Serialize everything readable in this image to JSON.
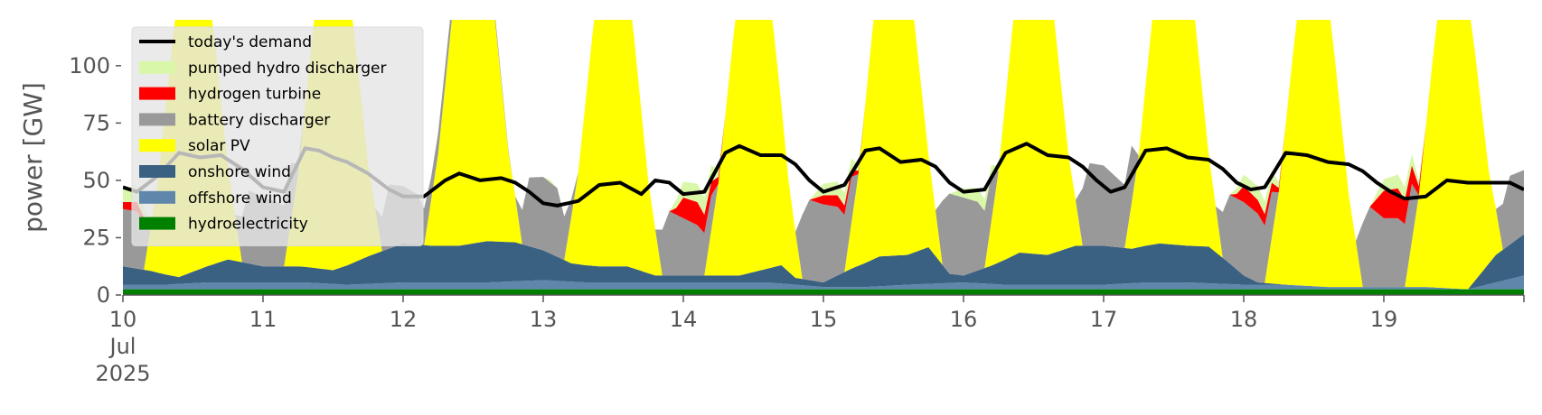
{
  "chart_data": {
    "type": "area",
    "ylabel": "power [GW]",
    "ylim": [
      0,
      120
    ],
    "yticks": [
      0,
      25,
      50,
      75,
      100
    ],
    "xlim": [
      10,
      20
    ],
    "xtick_labels": [
      "10",
      "11",
      "12",
      "13",
      "14",
      "15",
      "16",
      "17",
      "18",
      "19"
    ],
    "xtick_sub": [
      "Jul",
      "2025"
    ],
    "x_unit": "day of July 2025",
    "grid": false,
    "legend_position": "top-left",
    "stack_order": [
      "hydroelectricity",
      "offshore wind",
      "onshore wind",
      "solar PV",
      "battery discharger",
      "hydrogen turbine",
      "pumped hydro discharger"
    ],
    "series": [
      {
        "name": "today's demand",
        "kind": "line",
        "color": "#000000",
        "x": [
          10,
          10.1,
          10.25,
          10.4,
          10.55,
          10.7,
          10.85,
          11,
          11.15,
          11.3,
          11.4,
          11.5,
          11.6,
          11.75,
          11.9,
          12,
          12.15,
          12.3,
          12.4,
          12.55,
          12.7,
          12.8,
          12.9,
          13,
          13.1,
          13.25,
          13.4,
          13.55,
          13.7,
          13.8,
          13.9,
          14,
          14.15,
          14.3,
          14.4,
          14.55,
          14.7,
          14.8,
          14.9,
          15,
          15.15,
          15.3,
          15.4,
          15.55,
          15.7,
          15.8,
          15.9,
          16,
          16.15,
          16.3,
          16.45,
          16.6,
          16.75,
          16.85,
          16.95,
          17.05,
          17.15,
          17.3,
          17.45,
          17.6,
          17.75,
          17.85,
          17.95,
          18.05,
          18.15,
          18.3,
          18.45,
          18.6,
          18.75,
          18.85,
          18.95,
          19.05,
          19.15,
          19.3,
          19.45,
          19.6,
          19.75,
          19.9,
          20
        ],
        "values": [
          47,
          45,
          52,
          62,
          60,
          61,
          55,
          47,
          45,
          64,
          63,
          60,
          58,
          53,
          46,
          43,
          43,
          50,
          53,
          50,
          51,
          49,
          45,
          40,
          39,
          41,
          48,
          49,
          44,
          50,
          49,
          44,
          45,
          62,
          65,
          61,
          61,
          57,
          50,
          45,
          48,
          63,
          64,
          58,
          59,
          56,
          49,
          45,
          46,
          62,
          66,
          61,
          60,
          56,
          50,
          45,
          47,
          63,
          64,
          60,
          59,
          55,
          49,
          46,
          47,
          62,
          61,
          58,
          57,
          54,
          49,
          45,
          42,
          43,
          50,
          49,
          49,
          49,
          46
        ]
      },
      {
        "name": "pumped hydro discharger",
        "kind": "area",
        "color": "#d9f7a8",
        "x": [
          10,
          10.1,
          10.15,
          10.2,
          13,
          13.05,
          13.1,
          13.9,
          14,
          14.1,
          14.2,
          14.3,
          14.9,
          15,
          15.1,
          15.2,
          15.3,
          15.9,
          16,
          16.1,
          16.2,
          16.3,
          17.9,
          18,
          18.1,
          18.2,
          18.3,
          18.9,
          19,
          19.1,
          19.2,
          19.3,
          20
        ],
        "values": [
          6,
          7,
          5,
          0,
          0,
          1,
          0,
          0,
          7,
          8,
          7,
          0,
          0,
          5,
          6,
          5,
          0,
          0,
          4,
          6,
          4,
          0,
          0,
          5,
          6,
          5,
          0,
          0,
          5,
          6,
          5,
          0,
          0
        ]
      },
      {
        "name": "hydrogen turbine",
        "kind": "area",
        "color": "#ff0000",
        "x": [
          10,
          10.1,
          10.15,
          10.2,
          13.9,
          13.95,
          14,
          14.1,
          14.2,
          14.3,
          14.9,
          15,
          15.1,
          15.2,
          15.3,
          17.9,
          17.95,
          18,
          18.1,
          18.2,
          18.3,
          18.9,
          18.95,
          19,
          19.1,
          19.2,
          19.3,
          20
        ],
        "values": [
          3,
          4,
          3,
          0,
          0,
          3,
          9,
          10,
          6,
          0,
          0,
          4,
          5,
          3,
          0,
          0,
          2,
          7,
          6,
          4,
          0,
          0,
          6,
          12,
          13,
          8,
          0,
          0
        ]
      },
      {
        "name": "battery discharger",
        "kind": "area",
        "color": "#999999",
        "x": [
          10,
          10.1,
          10.15,
          10.2,
          10.8,
          10.85,
          10.9,
          11,
          11.1,
          11.2,
          11.25,
          11.3,
          11.8,
          11.85,
          11.9,
          12,
          12.1,
          12.2,
          12.8,
          12.85,
          12.9,
          13,
          13.1,
          13.2,
          13.25,
          13.8,
          13.85,
          13.9,
          14,
          14.1,
          14.2,
          14.25,
          14.8,
          14.85,
          14.9,
          15,
          15.1,
          15.2,
          15.25,
          15.8,
          15.85,
          15.9,
          16,
          16.1,
          16.2,
          16.25,
          16.8,
          16.85,
          16.9,
          17,
          17.1,
          17.2,
          17.25,
          17.8,
          17.85,
          17.9,
          18,
          18.1,
          18.2,
          18.25,
          18.8,
          18.85,
          18.9,
          19,
          19.1,
          19.2,
          19.25,
          19.8,
          19.85,
          19.9,
          20
        ],
        "values": [
          25,
          25,
          20,
          0,
          0,
          20,
          32,
          30,
          28,
          25,
          5,
          0,
          0,
          15,
          28,
          25,
          22,
          10,
          0,
          15,
          30,
          32,
          30,
          8,
          0,
          0,
          20,
          28,
          25,
          22,
          15,
          0,
          0,
          28,
          35,
          34,
          30,
          20,
          0,
          0,
          28,
          35,
          34,
          30,
          20,
          0,
          0,
          25,
          36,
          35,
          30,
          25,
          0,
          0,
          20,
          30,
          32,
          30,
          20,
          0,
          0,
          28,
          35,
          30,
          30,
          25,
          0,
          0,
          20,
          30,
          28
        ]
      },
      {
        "name": "solar PV",
        "kind": "area",
        "color": "#ffff00",
        "x": [
          10,
          10.15,
          10.25,
          10.35,
          10.5,
          10.65,
          10.75,
          10.85,
          11,
          11.15,
          11.25,
          11.35,
          11.5,
          11.65,
          11.75,
          11.85,
          12,
          12.15,
          12.25,
          12.35,
          12.5,
          12.65,
          12.75,
          12.85,
          13,
          13.15,
          13.25,
          13.35,
          13.5,
          13.65,
          13.75,
          13.85,
          14,
          14.15,
          14.25,
          14.35,
          14.5,
          14.65,
          14.75,
          14.85,
          15,
          15.15,
          15.25,
          15.35,
          15.5,
          15.65,
          15.75,
          15.85,
          16,
          16.15,
          16.25,
          16.35,
          16.5,
          16.65,
          16.75,
          16.85,
          17,
          17.15,
          17.25,
          17.35,
          17.5,
          17.65,
          17.75,
          17.85,
          18,
          18.15,
          18.25,
          18.35,
          18.5,
          18.65,
          18.75,
          18.85,
          19,
          19.15,
          19.25,
          19.35,
          19.5,
          19.65,
          19.75,
          19.85,
          20
        ],
        "values": [
          0,
          0,
          40,
          100,
          180,
          100,
          40,
          0,
          0,
          0,
          40,
          100,
          180,
          100,
          40,
          0,
          0,
          0,
          40,
          100,
          180,
          100,
          40,
          0,
          0,
          0,
          40,
          100,
          180,
          100,
          40,
          0,
          0,
          0,
          40,
          100,
          180,
          100,
          40,
          0,
          0,
          0,
          40,
          100,
          180,
          100,
          40,
          0,
          0,
          0,
          40,
          100,
          180,
          100,
          40,
          0,
          0,
          0,
          40,
          100,
          180,
          100,
          40,
          0,
          0,
          0,
          40,
          100,
          180,
          100,
          40,
          0,
          0,
          0,
          40,
          100,
          180,
          100,
          40,
          0,
          0
        ]
      },
      {
        "name": "onshore wind",
        "kind": "area",
        "color": "#3b6182",
        "x": [
          10,
          10.2,
          10.4,
          10.6,
          10.75,
          11,
          11.25,
          11.5,
          11.75,
          12,
          12.2,
          12.4,
          12.6,
          12.8,
          13,
          13.2,
          13.4,
          13.6,
          13.8,
          14,
          14.2,
          14.4,
          14.6,
          14.7,
          14.8,
          15,
          15.2,
          15.4,
          15.6,
          15.75,
          15.9,
          16,
          16.2,
          16.4,
          16.6,
          16.8,
          17,
          17.2,
          17.4,
          17.6,
          17.75,
          17.9,
          18,
          18.1,
          18.3,
          18.5,
          18.7,
          18.9,
          19,
          19.2,
          19.4,
          19.5,
          19.6,
          19.8,
          20
        ],
        "values": [
          8,
          6,
          3,
          7,
          10,
          7,
          7,
          6,
          12,
          17,
          16,
          16,
          18,
          17,
          13,
          8,
          7,
          7,
          3,
          3,
          3,
          3,
          6,
          8,
          3,
          2,
          8,
          13,
          13,
          16,
          4,
          3,
          8,
          14,
          13,
          17,
          17,
          15,
          17,
          16,
          16,
          9,
          4,
          1,
          0,
          0,
          0,
          0,
          0,
          0,
          0,
          0,
          0,
          12,
          18
        ]
      },
      {
        "name": "offshore wind",
        "kind": "area",
        "color": "#5e87ab",
        "x": [
          10,
          10.3,
          10.6,
          11,
          11.3,
          11.6,
          12,
          12.3,
          12.6,
          13,
          13.3,
          13.6,
          14,
          14.3,
          14.6,
          15,
          15.3,
          15.6,
          16,
          16.3,
          16.6,
          17,
          17.3,
          17.6,
          18,
          18.3,
          18.6,
          19,
          19.3,
          19.6,
          20
        ],
        "values": [
          2,
          2,
          3,
          3,
          3,
          2,
          3,
          3,
          3,
          4,
          3,
          3,
          3,
          3,
          3,
          1,
          1,
          2,
          3,
          2,
          2,
          2,
          3,
          3,
          2,
          2,
          1,
          1,
          1,
          0,
          6
        ]
      },
      {
        "name": "hydroelectricity",
        "kind": "area",
        "color": "#008000",
        "x": [
          10,
          11,
          12,
          13,
          14,
          15,
          16,
          17,
          18,
          19,
          20
        ],
        "values": [
          2.5,
          2.5,
          2.5,
          2.5,
          2.5,
          2.5,
          2.5,
          2.5,
          2.5,
          2.5,
          2.5
        ]
      }
    ],
    "legend": [
      {
        "label": "today's demand",
        "kind": "line",
        "color": "#000000"
      },
      {
        "label": "pumped hydro discharger",
        "kind": "patch",
        "color": "#d9f7a8"
      },
      {
        "label": "hydrogen turbine",
        "kind": "patch",
        "color": "#ff0000"
      },
      {
        "label": "battery discharger",
        "kind": "patch",
        "color": "#999999"
      },
      {
        "label": "solar PV",
        "kind": "patch",
        "color": "#ffff00"
      },
      {
        "label": "onshore wind",
        "kind": "patch",
        "color": "#3b6182"
      },
      {
        "label": "offshore wind",
        "kind": "patch",
        "color": "#5e87ab"
      },
      {
        "label": "hydroelectricity",
        "kind": "patch",
        "color": "#008000"
      }
    ]
  }
}
